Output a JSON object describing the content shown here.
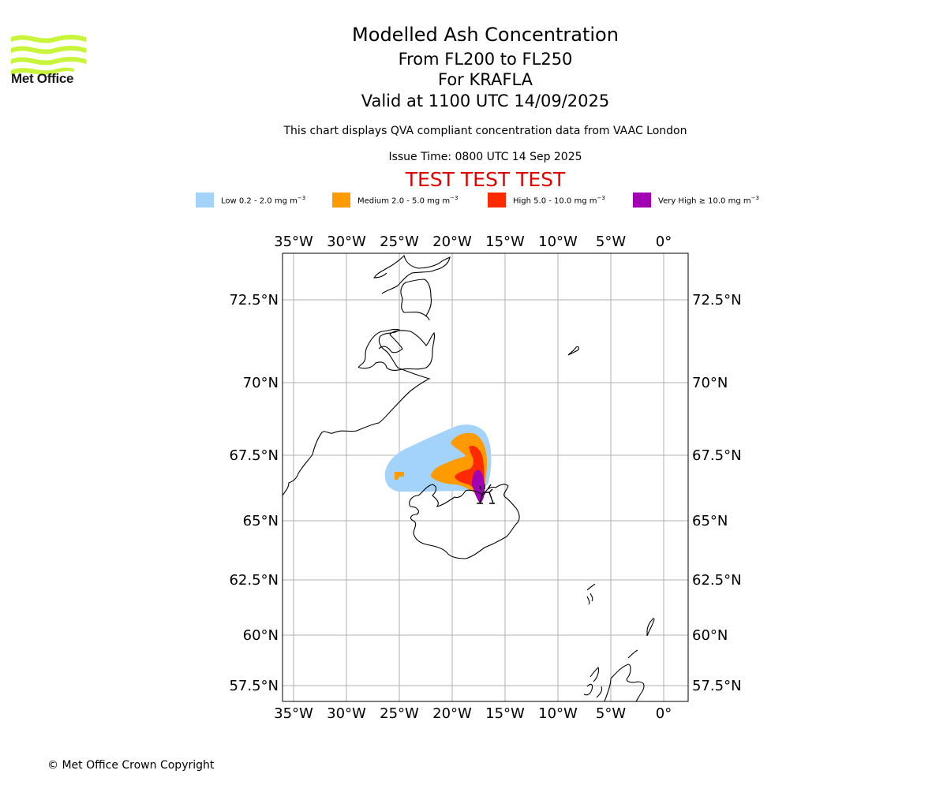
{
  "branding": {
    "logo_text": "Met Office"
  },
  "header": {
    "title": "Modelled Ash Concentration",
    "subtitle_level": "From FL200 to FL250",
    "subtitle_volcano": "For KRAFLA",
    "subtitle_valid": "Valid at 1100 UTC 14/09/2025",
    "description": "This chart displays QVA compliant concentration data from VAAC London",
    "issue_time": "Issue Time: 0800 UTC 14 Sep 2025",
    "test_banner": "TEST TEST TEST"
  },
  "legend": {
    "items": [
      {
        "label": "Low 0.2 - 2.0 mg m",
        "unit_exp": "−3",
        "color": "#a3d3fb"
      },
      {
        "label": "Medium 2.0 - 5.0 mg m",
        "unit_exp": "−3",
        "color": "#ff9a00"
      },
      {
        "label": "High 5.0 - 10.0 mg m",
        "unit_exp": "−3",
        "color": "#ff2a00"
      },
      {
        "label": "Very High  ≥  10.0 mg m",
        "unit_exp": "−3",
        "color": "#a200b5"
      }
    ]
  },
  "map": {
    "lon_labels": [
      "35°W",
      "30°W",
      "25°W",
      "20°W",
      "15°W",
      "10°W",
      "5°W",
      "0°"
    ],
    "lat_labels": [
      "72.5°N",
      "70°N",
      "67.5°N",
      "65°N",
      "62.5°N",
      "60°N",
      "57.5°N"
    ],
    "volcano": "KRAFLA"
  },
  "footer": {
    "copyright": "© Met Office Crown Copyright"
  }
}
